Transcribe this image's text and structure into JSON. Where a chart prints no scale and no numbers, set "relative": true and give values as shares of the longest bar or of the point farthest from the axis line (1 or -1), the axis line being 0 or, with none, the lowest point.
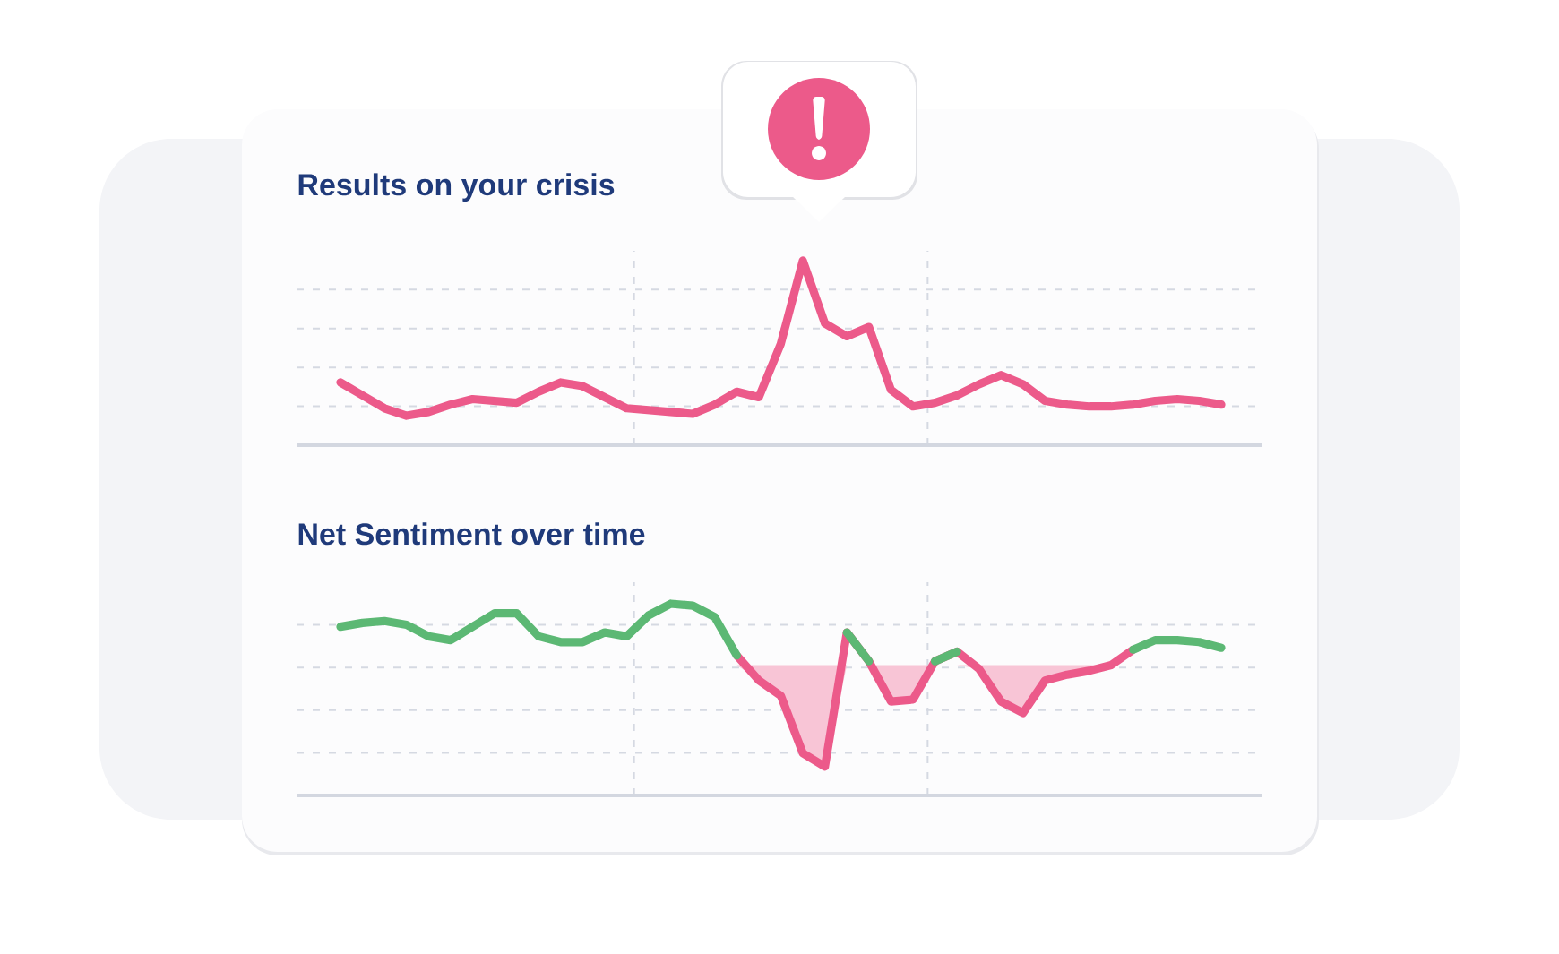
{
  "chart_data": [
    {
      "type": "line",
      "title": "Results on your crisis",
      "relative": true,
      "grid": true,
      "categories": [
        null,
        null,
        null,
        null,
        null,
        null,
        null,
        null,
        null,
        null,
        null,
        null,
        null,
        null,
        null,
        null,
        null,
        null,
        null,
        null,
        null,
        null,
        null,
        null,
        null,
        null,
        null,
        null,
        null,
        null,
        null,
        null,
        null,
        null,
        null,
        null,
        null,
        null,
        null,
        null,
        null
      ],
      "series": [
        {
          "color": "#ec5a8a",
          "values": [
            0.34,
            0.27,
            0.2,
            0.16,
            0.18,
            0.22,
            0.25,
            0.24,
            0.23,
            0.29,
            0.34,
            0.32,
            0.26,
            0.2,
            0.19,
            0.18,
            0.17,
            0.22,
            0.29,
            0.26,
            0.55,
            1.0,
            0.66,
            0.59,
            0.64,
            0.3,
            0.21,
            0.23,
            0.27,
            0.33,
            0.38,
            0.33,
            0.24,
            0.22,
            0.21,
            0.21,
            0.22,
            0.24,
            0.25,
            0.24,
            0.22
          ]
        }
      ]
    },
    {
      "type": "line",
      "title": "Net Sentiment over time",
      "relative": true,
      "grid": true,
      "categories": [
        null,
        null,
        null,
        null,
        null,
        null,
        null,
        null,
        null,
        null,
        null,
        null,
        null,
        null,
        null,
        null,
        null,
        null,
        null,
        null,
        null,
        null,
        null,
        null,
        null,
        null,
        null,
        null,
        null,
        null,
        null,
        null,
        null,
        null,
        null,
        null,
        null,
        null,
        null,
        null,
        null
      ],
      "series": [
        {
          "color": "#5cb874",
          "values": [
            0.88,
            0.9,
            0.91,
            0.89,
            0.83,
            0.81,
            0.88,
            0.95,
            0.95,
            0.83,
            0.8,
            0.8,
            0.85,
            0.83,
            0.94,
            1.0,
            0.99,
            0.93,
            0.73,
            null,
            null,
            null,
            null,
            0.85,
            0.7,
            null,
            null,
            0.7,
            0.75,
            null,
            null,
            null,
            null,
            null,
            null,
            null,
            0.76,
            0.81,
            0.81,
            0.8,
            0.77
          ]
        },
        {
          "color": "#ec5a8a",
          "values": [
            null,
            null,
            null,
            null,
            null,
            null,
            null,
            null,
            null,
            null,
            null,
            null,
            null,
            null,
            null,
            null,
            null,
            null,
            0.73,
            0.6,
            0.52,
            0.22,
            0.15,
            0.85,
            0.7,
            0.49,
            0.5,
            0.7,
            0.75,
            0.66,
            0.49,
            0.43,
            0.6,
            0.63,
            0.65,
            0.68,
            0.76,
            null,
            null,
            null,
            null
          ],
          "lower": [
            null,
            null,
            null,
            null,
            null,
            null,
            null,
            null,
            null,
            null,
            null,
            null,
            null,
            null,
            null,
            null,
            null,
            null,
            0.68,
            0.6,
            0.52,
            0.22,
            0.15,
            0.68,
            0.68,
            0.49,
            0.5,
            0.68,
            0.68,
            0.66,
            0.49,
            0.43,
            0.6,
            0.63,
            0.65,
            0.68,
            0.68,
            null,
            null,
            null,
            null
          ],
          "upper": [
            null,
            null,
            null,
            null,
            null,
            null,
            null,
            null,
            null,
            null,
            null,
            null,
            null,
            null,
            null,
            null,
            null,
            null,
            0.68,
            0.68,
            0.68,
            0.68,
            0.68,
            0.68,
            0.68,
            0.68,
            0.68,
            0.68,
            0.68,
            0.68,
            0.68,
            0.68,
            0.68,
            0.68,
            0.68,
            0.68,
            0.68,
            null,
            null,
            null,
            null
          ]
        }
      ]
    }
  ]
}
